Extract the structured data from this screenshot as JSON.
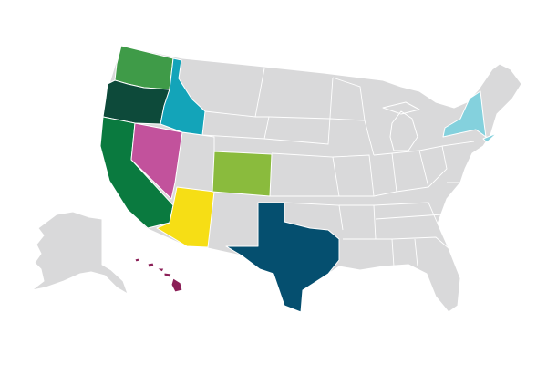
{
  "map": {
    "base_color": "#d9d9da",
    "border_color": "#ffffff",
    "highlighted_states": [
      {
        "id": "WA",
        "color": "#3f9b48"
      },
      {
        "id": "OR",
        "color": "#0d4a3a"
      },
      {
        "id": "ID",
        "color": "#13a4b9"
      },
      {
        "id": "CA",
        "color": "#0a7a3f"
      },
      {
        "id": "NV",
        "color": "#c2529c"
      },
      {
        "id": "AZ",
        "color": "#f6de15"
      },
      {
        "id": "CO",
        "color": "#8abb3d"
      },
      {
        "id": "TX",
        "color": "#054f6f"
      },
      {
        "id": "NY",
        "color": "#84d1dd"
      },
      {
        "id": "HI",
        "color": "#8b1f57"
      }
    ]
  }
}
